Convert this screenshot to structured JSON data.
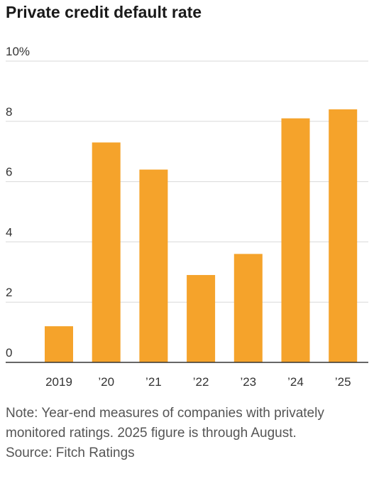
{
  "chart_data": {
    "type": "bar",
    "title": "Private credit default rate",
    "categories": [
      "2019",
      "’20",
      "’21",
      "’22",
      "’23",
      "’24",
      "’25"
    ],
    "values": [
      1.2,
      7.3,
      6.4,
      2.9,
      3.6,
      8.1,
      8.4
    ],
    "y_ticks": [
      {
        "value": 0,
        "label": "0"
      },
      {
        "value": 2,
        "label": "2"
      },
      {
        "value": 4,
        "label": "4"
      },
      {
        "value": 6,
        "label": "6"
      },
      {
        "value": 8,
        "label": "8"
      },
      {
        "value": 10,
        "label": "10%"
      }
    ],
    "ylim": [
      0,
      10
    ],
    "xlabel": "",
    "ylabel": "",
    "grid": true,
    "bar_color": "#F5A32B",
    "grid_color": "#d9d9d9",
    "axis_color": "#333333"
  },
  "notes": {
    "note": "Note: Year-end measures of companies with privately monitored ratings. 2025 figure is through August.",
    "source": "Source: Fitch Ratings"
  }
}
